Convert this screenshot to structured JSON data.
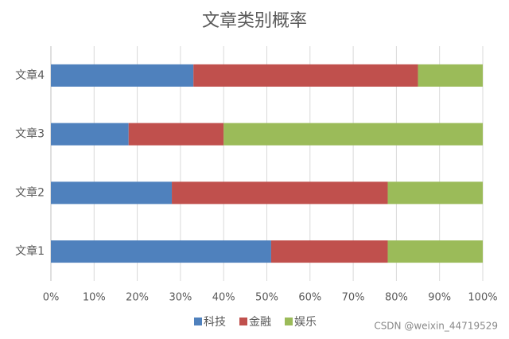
{
  "chart_data": {
    "type": "bar",
    "orientation": "horizontal",
    "stacked": true,
    "title": "文章类别概率",
    "categories": [
      "文章1",
      "文章2",
      "文章3",
      "文章4"
    ],
    "series": [
      {
        "name": "科技",
        "color": "#4f81bd",
        "values": [
          51,
          28,
          18,
          33
        ]
      },
      {
        "name": "金融",
        "color": "#c0504d",
        "values": [
          27,
          50,
          22,
          52
        ]
      },
      {
        "name": "娱乐",
        "color": "#9bbb59",
        "values": [
          22,
          22,
          60,
          15
        ]
      }
    ],
    "xlim": [
      0,
      100
    ],
    "xticks": [
      {
        "value": 0,
        "label": "0%"
      },
      {
        "value": 10,
        "label": "10%"
      },
      {
        "value": 20,
        "label": "20%"
      },
      {
        "value": 30,
        "label": "30%"
      },
      {
        "value": 40,
        "label": "40%"
      },
      {
        "value": 50,
        "label": "50%"
      },
      {
        "value": 60,
        "label": "60%"
      },
      {
        "value": 70,
        "label": "70%"
      },
      {
        "value": 80,
        "label": "80%"
      },
      {
        "value": 90,
        "label": "90%"
      },
      {
        "value": 100,
        "label": "100%"
      }
    ],
    "grid": true,
    "legend": "bottom",
    "watermark": "CSDN @weixin_44719529"
  }
}
